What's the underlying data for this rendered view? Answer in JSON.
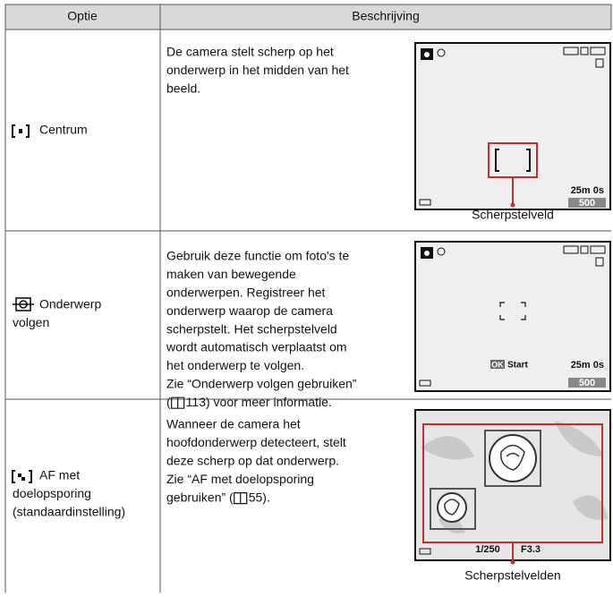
{
  "header": {
    "option": "Optie",
    "description": "Beschrijving"
  },
  "rows": [
    {
      "option": [
        "Centrum"
      ],
      "description": [
        "De camera stelt scherp op het",
        "onderwerp in het midden van het",
        "beeld."
      ],
      "screen": {
        "time": "25m 0s",
        "count": "500"
      },
      "caption": "Scherpstelveld"
    },
    {
      "option": [
        "Onderwerp",
        "volgen"
      ],
      "description": [
        "Gebruik deze functie om foto's te",
        "maken van bewegende",
        "onderwerpen. Registreer het",
        "onderwerp waarop de camera",
        "scherpstelt. Het scherpstelveld",
        "wordt automatisch verplaatst om",
        "het onderwerp te volgen.",
        "Zie “Onderwerp volgen gebruiken”"
      ],
      "reference": {
        "prefix": "(",
        "page": "113",
        "suffix": ") voor meer informatie."
      },
      "screen": {
        "button": "OK",
        "action": "Start",
        "time": "25m 0s",
        "count": "500"
      }
    },
    {
      "option": [
        "AF met",
        "doelopsporing",
        "(standaardinstelling)"
      ],
      "description": [
        "Wanneer de camera het",
        "hoofdonderwerp detecteert, stelt",
        "deze scherp op dat onderwerp.",
        "Zie “AF met doelopsporing"
      ],
      "reference": {
        "prefix": "gebruiken” (",
        "page": "55",
        "suffix": ")."
      },
      "screen": {
        "shutter": "1/250",
        "aperture": "F3.3"
      },
      "caption": "Scherpstelvelden"
    }
  ]
}
